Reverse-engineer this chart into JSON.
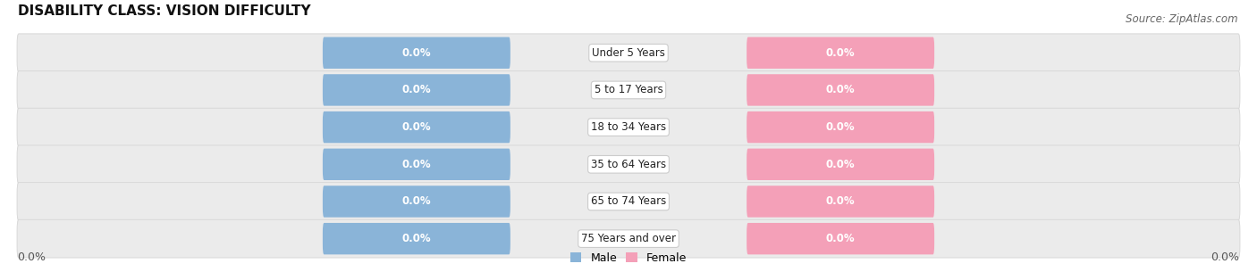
{
  "title": "DISABILITY CLASS: VISION DIFFICULTY",
  "source": "Source: ZipAtlas.com",
  "categories": [
    "Under 5 Years",
    "5 to 17 Years",
    "18 to 34 Years",
    "35 to 64 Years",
    "65 to 74 Years",
    "75 Years and over"
  ],
  "male_values": [
    0.0,
    0.0,
    0.0,
    0.0,
    0.0,
    0.0
  ],
  "female_values": [
    0.0,
    0.0,
    0.0,
    0.0,
    0.0,
    0.0
  ],
  "male_color": "#8ab4d8",
  "female_color": "#f4a0b8",
  "male_label": "Male",
  "female_label": "Female",
  "title_fontsize": 11,
  "source_fontsize": 8.5,
  "label_fontsize": 9,
  "tick_fontsize": 9,
  "background_color": "#ffffff",
  "row_bg_color": "#ebebeb",
  "row_border_color": "#d8d8d8",
  "category_box_color": "#ffffff",
  "category_border_color": "#cccccc"
}
